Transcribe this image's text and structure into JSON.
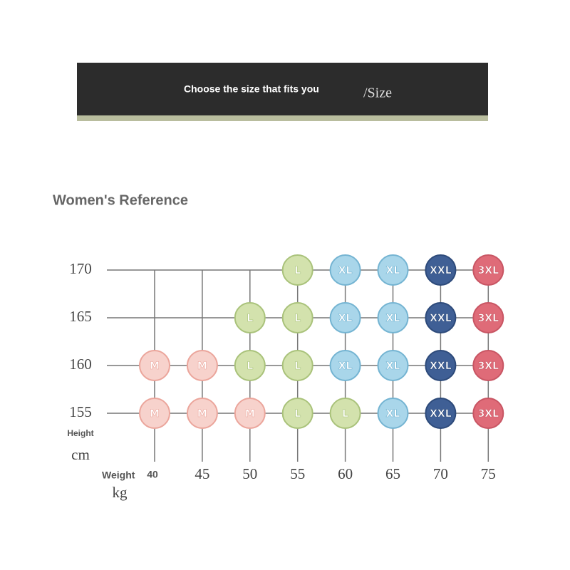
{
  "banner": {
    "text": "Choose the size that fits you",
    "suffix": "/Size"
  },
  "heading": "Women's Reference",
  "y_axis": {
    "label": "Height",
    "unit": "cm",
    "values": [
      170,
      165,
      160,
      155
    ]
  },
  "x_axis": {
    "label": "Weight",
    "unit": "kg",
    "values": [
      40,
      45,
      50,
      55,
      60,
      65,
      70,
      75
    ]
  },
  "grid": [
    [
      null,
      null,
      null,
      {
        "label": "L",
        "color": "#d3e2ad",
        "border": "#a9c27a"
      },
      {
        "label": "XL",
        "color": "#a9d6ea",
        "border": "#74b4d2"
      },
      {
        "label": "XL",
        "color": "#a9d6ea",
        "border": "#74b4d2"
      },
      {
        "label": "XXL",
        "color": "#3f5f95",
        "border": "#2d4a7a"
      },
      {
        "label": "3XL",
        "color": "#df6b78",
        "border": "#c85563"
      }
    ],
    [
      null,
      null,
      {
        "label": "L",
        "color": "#d3e2ad",
        "border": "#a9c27a"
      },
      {
        "label": "L",
        "color": "#d3e2ad",
        "border": "#a9c27a"
      },
      {
        "label": "XL",
        "color": "#a9d6ea",
        "border": "#74b4d2"
      },
      {
        "label": "XL",
        "color": "#a9d6ea",
        "border": "#74b4d2"
      },
      {
        "label": "XXL",
        "color": "#3f5f95",
        "border": "#2d4a7a"
      },
      {
        "label": "3XL",
        "color": "#df6b78",
        "border": "#c85563"
      }
    ],
    [
      {
        "label": "M",
        "color": "#f7d2cc",
        "border": "#eba59b"
      },
      {
        "label": "M",
        "color": "#f7d2cc",
        "border": "#eba59b"
      },
      {
        "label": "L",
        "color": "#d3e2ad",
        "border": "#a9c27a"
      },
      {
        "label": "L",
        "color": "#d3e2ad",
        "border": "#a9c27a"
      },
      {
        "label": "XL",
        "color": "#a9d6ea",
        "border": "#74b4d2"
      },
      {
        "label": "XL",
        "color": "#a9d6ea",
        "border": "#74b4d2"
      },
      {
        "label": "XXL",
        "color": "#3f5f95",
        "border": "#2d4a7a"
      },
      {
        "label": "3XL",
        "color": "#df6b78",
        "border": "#c85563"
      }
    ],
    [
      {
        "label": "M",
        "color": "#f7d2cc",
        "border": "#eba59b"
      },
      {
        "label": "M",
        "color": "#f7d2cc",
        "border": "#eba59b"
      },
      {
        "label": "M",
        "color": "#f7d2cc",
        "border": "#eba59b"
      },
      {
        "label": "L",
        "color": "#d3e2ad",
        "border": "#a9c27a"
      },
      {
        "label": "L",
        "color": "#d3e2ad",
        "border": "#a9c27a"
      },
      {
        "label": "XL",
        "color": "#a9d6ea",
        "border": "#74b4d2"
      },
      {
        "label": "XXL",
        "color": "#3f5f95",
        "border": "#2d4a7a"
      },
      {
        "label": "3XL",
        "color": "#df6b78",
        "border": "#c85563"
      }
    ]
  ]
}
